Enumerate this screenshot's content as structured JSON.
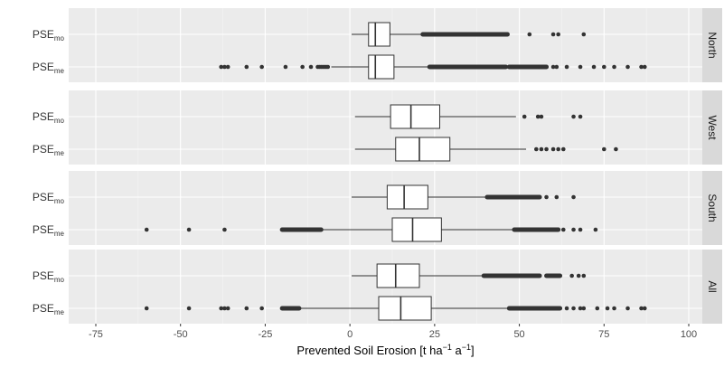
{
  "chart_data": {
    "type": "boxplot",
    "title": "",
    "xlabel": "Prevented Soil Erosion [t ha⁻¹ a⁻¹]",
    "xlim": [
      -83,
      104
    ],
    "x_ticks": [
      -75,
      -50,
      -25,
      0,
      25,
      50,
      75,
      100
    ],
    "grid": true,
    "legend": "none",
    "colors": {
      "panel_bg": "#EBEBEB",
      "grid_major": "#FFFFFF",
      "grid_minor": "#F5F5F5",
      "strip_bg": "#D9D9D9",
      "box_fill": "#FFFFFF",
      "box_line": "#333333",
      "outlier": "#333333"
    },
    "panels": [
      {
        "strip": "North",
        "rows": [
          {
            "label": "PSE",
            "subscript": "mo",
            "q1": 5.5,
            "median": 7.5,
            "q3": 11.8,
            "whisker_low": 0.5,
            "whisker_high": 21.5,
            "outliers": [
              53,
              60,
              61.5,
              69
            ],
            "outlier_runs": [
              [
                21.5,
                46.5
              ]
            ]
          },
          {
            "label": "PSE",
            "subscript": "me",
            "q1": 5.5,
            "median": 7.5,
            "q3": 13.0,
            "whisker_low": -5.5,
            "whisker_high": 23.5,
            "outliers": [
              -38,
              -37,
              -36,
              -30.5,
              -26,
              -19,
              -14,
              -11.5,
              -9.5,
              -9,
              -8.5,
              -8,
              -7.5,
              -7,
              -6.5,
              48,
              56,
              60,
              61,
              64,
              68,
              72,
              75,
              78,
              82,
              86,
              87
            ],
            "outlier_runs": [
              [
                23.5,
                46
              ],
              [
                47,
                58
              ]
            ]
          }
        ]
      },
      {
        "strip": "West",
        "rows": [
          {
            "label": "PSE",
            "subscript": "mo",
            "q1": 12.0,
            "median": 18.0,
            "q3": 26.5,
            "whisker_low": 1.5,
            "whisker_high": 49.0,
            "outliers": [
              51.5,
              55.5,
              56.5,
              66,
              68
            ]
          },
          {
            "label": "PSE",
            "subscript": "me",
            "q1": 13.5,
            "median": 20.5,
            "q3": 29.5,
            "whisker_low": 1.5,
            "whisker_high": 52.0,
            "outliers": [
              55,
              56.5,
              58,
              60,
              61.5,
              63,
              75,
              78.5
            ]
          }
        ]
      },
      {
        "strip": "South",
        "rows": [
          {
            "label": "PSE",
            "subscript": "mo",
            "q1": 11.0,
            "median": 16.0,
            "q3": 23.0,
            "whisker_low": 0.5,
            "whisker_high": 40.5,
            "outliers": [
              58,
              61,
              66
            ],
            "outlier_runs": [
              [
                40.5,
                56
              ]
            ]
          },
          {
            "label": "PSE",
            "subscript": "me",
            "q1": 12.5,
            "median": 18.5,
            "q3": 27.0,
            "whisker_low": -19.0,
            "whisker_high": 48.5,
            "outliers": [
              -60,
              -47.5,
              -37,
              63,
              66,
              68,
              72.5
            ],
            "outlier_runs": [
              [
                -20,
                -8.5
              ],
              [
                48.5,
                61.5
              ]
            ]
          }
        ]
      },
      {
        "strip": "All",
        "rows": [
          {
            "label": "PSE",
            "subscript": "mo",
            "q1": 8.0,
            "median": 13.5,
            "q3": 20.5,
            "whisker_low": 0.5,
            "whisker_high": 39.5,
            "outliers": [
              65.5,
              67.5,
              69
            ],
            "outlier_runs": [
              [
                39.5,
                56
              ],
              [
                58,
                62
              ]
            ]
          },
          {
            "label": "PSE",
            "subscript": "me",
            "q1": 8.5,
            "median": 15.0,
            "q3": 24.0,
            "whisker_low": -15.0,
            "whisker_high": 47.0,
            "outliers": [
              -60,
              -47.5,
              -38,
              -37,
              -36,
              -30.5,
              -26,
              64,
              66,
              68,
              69,
              73,
              76,
              78,
              82,
              86,
              87
            ],
            "outlier_runs": [
              [
                -20,
                -15
              ],
              [
                47,
                62
              ]
            ]
          }
        ]
      }
    ]
  }
}
